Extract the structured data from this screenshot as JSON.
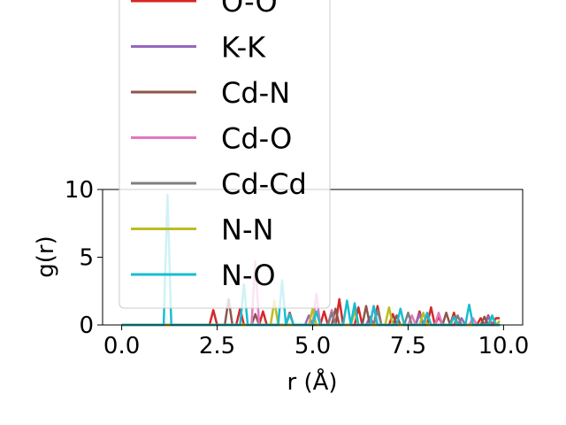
{
  "chart_data": {
    "type": "line",
    "title": "",
    "xlabel": "r (Å)",
    "ylabel": "g(r)",
    "xlim": [
      -0.5,
      10.5
    ],
    "ylim": [
      0,
      10
    ],
    "x_ticks": [
      "0.0",
      "2.5",
      "5.0",
      "7.5",
      "10.0"
    ],
    "y_ticks": [
      "0",
      "5",
      "10"
    ],
    "legend_placement": "upper-left (overlapping plot)",
    "grid": false,
    "series": [
      {
        "name": "O-O",
        "color": "#d62728",
        "points": [
          [
            0,
            0
          ],
          [
            2.3,
            0
          ],
          [
            2.4,
            1.1
          ],
          [
            2.5,
            0
          ],
          [
            3.0,
            0
          ],
          [
            3.1,
            1.2
          ],
          [
            3.2,
            0
          ],
          [
            3.6,
            0
          ],
          [
            3.7,
            1.0
          ],
          [
            3.8,
            0
          ],
          [
            4.3,
            0
          ],
          [
            4.4,
            0.9
          ],
          [
            4.5,
            0
          ],
          [
            5.2,
            0
          ],
          [
            5.3,
            1.0
          ],
          [
            5.4,
            0
          ],
          [
            5.6,
            0
          ],
          [
            5.7,
            1.9
          ],
          [
            5.8,
            0
          ],
          [
            6.1,
            0
          ],
          [
            6.2,
            1.3
          ],
          [
            6.3,
            0
          ],
          [
            6.6,
            0
          ],
          [
            6.7,
            1.4
          ],
          [
            6.8,
            0
          ],
          [
            7.0,
            0
          ],
          [
            7.1,
            0.8
          ],
          [
            7.2,
            0
          ],
          [
            7.7,
            0
          ],
          [
            7.8,
            1.0
          ],
          [
            7.9,
            0
          ],
          [
            8.0,
            0
          ],
          [
            8.1,
            1.3
          ],
          [
            8.2,
            0
          ],
          [
            8.3,
            0.6
          ],
          [
            8.4,
            0
          ],
          [
            8.6,
            0
          ],
          [
            8.7,
            0.9
          ],
          [
            8.8,
            0
          ],
          [
            9.3,
            0
          ],
          [
            9.4,
            0.5
          ],
          [
            9.5,
            0
          ],
          [
            9.6,
            0.7
          ],
          [
            9.7,
            0
          ],
          [
            9.8,
            0.5
          ],
          [
            9.9,
            0.5
          ]
        ]
      },
      {
        "name": "K-K",
        "color": "#9467bd",
        "points": [
          [
            0,
            0
          ],
          [
            4.8,
            0
          ],
          [
            4.9,
            0.7
          ],
          [
            5.0,
            0
          ],
          [
            6.4,
            0
          ],
          [
            6.5,
            0.6
          ],
          [
            6.6,
            0
          ],
          [
            7.7,
            0
          ],
          [
            7.8,
            0.8
          ],
          [
            7.9,
            0
          ],
          [
            8.8,
            0
          ],
          [
            8.9,
            0.5
          ],
          [
            9.0,
            0
          ],
          [
            9.5,
            0
          ],
          [
            9.6,
            0.6
          ],
          [
            9.7,
            0
          ],
          [
            9.9,
            0
          ]
        ]
      },
      {
        "name": "Cd-N",
        "color": "#8c564b",
        "points": [
          [
            0,
            0
          ],
          [
            2.7,
            0
          ],
          [
            2.8,
            1.9
          ],
          [
            2.9,
            0
          ],
          [
            3.4,
            0
          ],
          [
            3.5,
            0.8
          ],
          [
            3.6,
            0
          ],
          [
            5.5,
            0
          ],
          [
            5.6,
            1.2
          ],
          [
            5.7,
            0
          ],
          [
            6.3,
            0
          ],
          [
            6.4,
            1.4
          ],
          [
            6.5,
            0
          ],
          [
            7.1,
            0
          ],
          [
            7.2,
            0.7
          ],
          [
            7.3,
            0
          ],
          [
            7.9,
            0
          ],
          [
            8.0,
            0.8
          ],
          [
            8.1,
            0
          ],
          [
            8.4,
            0
          ],
          [
            8.5,
            0.9
          ],
          [
            8.6,
            0
          ],
          [
            9.4,
            0
          ],
          [
            9.5,
            0.6
          ],
          [
            9.6,
            0
          ],
          [
            9.9,
            0
          ]
        ]
      },
      {
        "name": "Cd-O",
        "color": "#e377c2",
        "points": [
          [
            0,
            0
          ],
          [
            3.4,
            0
          ],
          [
            3.5,
            4.7
          ],
          [
            3.6,
            0
          ],
          [
            5.0,
            0
          ],
          [
            5.1,
            2.3
          ],
          [
            5.2,
            0
          ],
          [
            5.4,
            0
          ],
          [
            5.5,
            1.1
          ],
          [
            5.6,
            0
          ],
          [
            6.5,
            0
          ],
          [
            6.6,
            1.4
          ],
          [
            6.7,
            0
          ],
          [
            7.5,
            0
          ],
          [
            7.6,
            0.7
          ],
          [
            7.7,
            0
          ],
          [
            8.2,
            0
          ],
          [
            8.3,
            0.9
          ],
          [
            8.4,
            0
          ],
          [
            9.1,
            0
          ],
          [
            9.2,
            0.5
          ],
          [
            9.3,
            0
          ],
          [
            9.9,
            0
          ]
        ]
      },
      {
        "name": "Cd-Cd",
        "color": "#7f7f7f",
        "points": [
          [
            0,
            0
          ],
          [
            5.4,
            0
          ],
          [
            5.5,
            0.9
          ],
          [
            5.6,
            0
          ],
          [
            6.6,
            0
          ],
          [
            6.7,
            1.1
          ],
          [
            6.8,
            0
          ],
          [
            7.4,
            0
          ],
          [
            7.5,
            0.9
          ],
          [
            7.6,
            0
          ],
          [
            8.7,
            0
          ],
          [
            8.8,
            0.7
          ],
          [
            8.9,
            0
          ],
          [
            9.9,
            0
          ]
        ]
      },
      {
        "name": "N-N",
        "color": "#bcbd22",
        "points": [
          [
            0,
            0
          ],
          [
            3.9,
            0
          ],
          [
            4.0,
            1.8
          ],
          [
            4.1,
            0
          ],
          [
            4.9,
            0
          ],
          [
            5.0,
            1.2
          ],
          [
            5.1,
            0
          ],
          [
            6.0,
            0
          ],
          [
            6.1,
            1.0
          ],
          [
            6.2,
            0
          ],
          [
            6.9,
            0
          ],
          [
            7.0,
            1.3
          ],
          [
            7.1,
            0
          ],
          [
            7.8,
            0
          ],
          [
            7.9,
            0.9
          ],
          [
            8.0,
            0
          ],
          [
            8.6,
            0
          ],
          [
            8.7,
            0.6
          ],
          [
            8.8,
            0
          ],
          [
            9.6,
            0
          ],
          [
            9.7,
            0.6
          ],
          [
            9.8,
            0
          ],
          [
            9.9,
            0.3
          ]
        ]
      },
      {
        "name": "N-O",
        "color": "#17becf",
        "points": [
          [
            0,
            0
          ],
          [
            1.1,
            0
          ],
          [
            1.2,
            9.6
          ],
          [
            1.3,
            0
          ],
          [
            3.1,
            0
          ],
          [
            3.2,
            3.0
          ],
          [
            3.3,
            0
          ],
          [
            4.1,
            0
          ],
          [
            4.2,
            3.3
          ],
          [
            4.3,
            0
          ],
          [
            4.4,
            0.8
          ],
          [
            4.5,
            0
          ],
          [
            5.0,
            0
          ],
          [
            5.1,
            1.0
          ],
          [
            5.2,
            0
          ],
          [
            5.8,
            0
          ],
          [
            5.9,
            1.8
          ],
          [
            6.0,
            0
          ],
          [
            6.1,
            1.6
          ],
          [
            6.2,
            0
          ],
          [
            6.5,
            0
          ],
          [
            6.6,
            1.4
          ],
          [
            6.7,
            0
          ],
          [
            7.2,
            0
          ],
          [
            7.3,
            1.2
          ],
          [
            7.4,
            0
          ],
          [
            7.9,
            0
          ],
          [
            8.0,
            0.9
          ],
          [
            8.1,
            0
          ],
          [
            8.6,
            0
          ],
          [
            8.7,
            0.6
          ],
          [
            8.8,
            0
          ],
          [
            9.0,
            0
          ],
          [
            9.1,
            1.5
          ],
          [
            9.2,
            0
          ],
          [
            9.6,
            0
          ],
          [
            9.7,
            0.7
          ],
          [
            9.8,
            0
          ],
          [
            9.9,
            0
          ]
        ]
      }
    ]
  }
}
